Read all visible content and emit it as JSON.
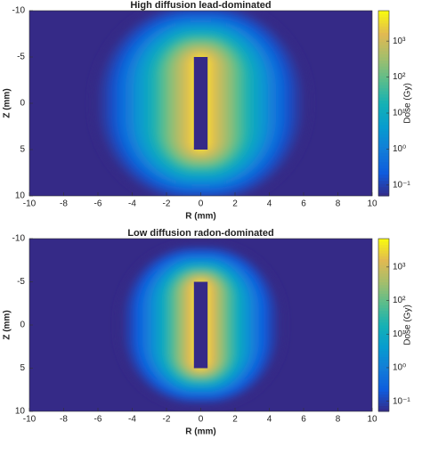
{
  "chart_data": [
    {
      "type": "heatmap",
      "title": "High diffusion lead-dominated",
      "x_label": "R (mm)",
      "y_label": "Z (mm)",
      "colorbar_label": "Dose (Gy)",
      "xlim": [
        -10,
        10
      ],
      "xticks": [
        -10,
        -8,
        -6,
        -4,
        -2,
        0,
        2,
        4,
        6,
        8,
        10
      ],
      "ylim": [
        -10,
        10
      ],
      "yticks": [
        -10,
        -5,
        0,
        5,
        10
      ],
      "y_reversed": true,
      "clim": [
        0.05,
        7000
      ],
      "color_scale": "log",
      "cticks": [
        {
          "value": 0.1,
          "label": "10⁻¹"
        },
        {
          "value": 1,
          "label": "10⁰"
        },
        {
          "value": 10,
          "label": "10¹"
        },
        {
          "value": 100,
          "label": "10²"
        },
        {
          "value": 1000,
          "label": "10³"
        }
      ],
      "colormap": [
        "#352a87",
        "#0f5cdd",
        "#127dd8",
        "#079ccf",
        "#15b1b4",
        "#59bd8c",
        "#a5be6b",
        "#e1b952",
        "#f9fb0e"
      ],
      "seed": {
        "r": [
          -0.4,
          0.4
        ],
        "z": [
          -5,
          5
        ]
      },
      "profile": {
        "distance": [
          0,
          0.5,
          1,
          1.5,
          2,
          2.5,
          3,
          3.5,
          4,
          4.5,
          5,
          5.5,
          6
        ],
        "dose": [
          5000,
          2000,
          700,
          250,
          80,
          25,
          8,
          3,
          1,
          0.4,
          0.15,
          0.08,
          0.05
        ]
      }
    },
    {
      "type": "heatmap",
      "title": "Low diffusion radon-dominated",
      "x_label": "R (mm)",
      "y_label": "Z (mm)",
      "colorbar_label": "Dose (Gy)",
      "xlim": [
        -10,
        10
      ],
      "xticks": [
        -10,
        -8,
        -6,
        -4,
        -2,
        0,
        2,
        4,
        6,
        8,
        10
      ],
      "ylim": [
        -10,
        10
      ],
      "yticks": [
        -10,
        -5,
        0,
        5,
        10
      ],
      "y_reversed": true,
      "clim": [
        0.05,
        7000
      ],
      "color_scale": "log",
      "cticks": [
        {
          "value": 0.1,
          "label": "10⁻¹"
        },
        {
          "value": 1,
          "label": "10⁰"
        },
        {
          "value": 10,
          "label": "10¹"
        },
        {
          "value": 100,
          "label": "10²"
        },
        {
          "value": 1000,
          "label": "10³"
        }
      ],
      "colormap": [
        "#352a87",
        "#0f5cdd",
        "#127dd8",
        "#079ccf",
        "#15b1b4",
        "#59bd8c",
        "#a5be6b",
        "#e1b952",
        "#f9fb0e"
      ],
      "seed": {
        "r": [
          -0.4,
          0.4
        ],
        "z": [
          -5,
          5
        ]
      },
      "profile": {
        "distance": [
          0,
          0.5,
          1,
          1.5,
          2,
          2.5,
          3,
          3.5,
          4,
          4.5
        ],
        "dose": [
          5000,
          1500,
          300,
          60,
          12,
          3,
          0.8,
          0.25,
          0.1,
          0.05
        ]
      }
    }
  ]
}
